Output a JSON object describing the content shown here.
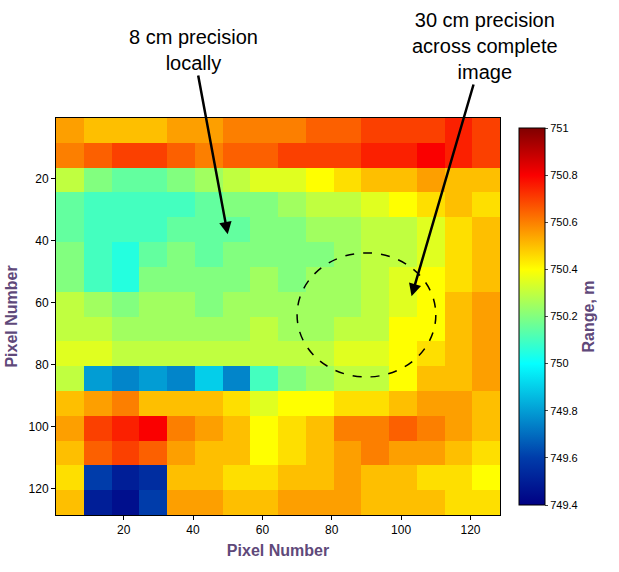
{
  "chart_data": {
    "type": "heatmap",
    "xlabel": "Pixel Number",
    "ylabel": "Pixel Number",
    "x": [
      4.5,
      12.5,
      20.5,
      28.5,
      36.5,
      44.5,
      52.5,
      60.5,
      68.5,
      76.5,
      84.5,
      92.5,
      100.5,
      108.5,
      116.5,
      124.5
    ],
    "y": [
      4.5,
      12.5,
      20.5,
      28.5,
      36.5,
      44.5,
      52.5,
      60.5,
      68.5,
      76.5,
      84.5,
      92.5,
      100.5,
      108.5,
      116.5,
      124.5
    ],
    "z": [
      [
        750.55,
        750.5,
        750.5,
        750.5,
        750.55,
        750.55,
        750.6,
        750.6,
        750.6,
        750.65,
        750.65,
        750.7,
        750.7,
        750.7,
        750.75,
        750.7
      ],
      [
        750.6,
        750.65,
        750.7,
        750.7,
        750.65,
        750.6,
        750.65,
        750.65,
        750.7,
        750.7,
        750.7,
        750.75,
        750.75,
        750.8,
        750.75,
        750.7
      ],
      [
        750.3,
        750.2,
        750.15,
        750.15,
        750.2,
        750.25,
        750.3,
        750.35,
        750.35,
        750.4,
        750.45,
        750.5,
        750.5,
        750.55,
        750.5,
        750.5
      ],
      [
        750.15,
        750.1,
        750.1,
        750.1,
        750.1,
        750.15,
        750.2,
        750.2,
        750.25,
        750.3,
        750.3,
        750.35,
        750.4,
        750.45,
        750.5,
        750.45
      ],
      [
        750.15,
        750.1,
        750.1,
        750.1,
        750.15,
        750.15,
        750.15,
        750.2,
        750.2,
        750.25,
        750.25,
        750.3,
        750.3,
        750.35,
        750.45,
        750.5
      ],
      [
        750.2,
        750.1,
        750.05,
        750.15,
        750.2,
        750.15,
        750.2,
        750.2,
        750.2,
        750.2,
        750.25,
        750.3,
        750.3,
        750.35,
        750.45,
        750.5
      ],
      [
        750.2,
        750.1,
        750.05,
        750.2,
        750.2,
        750.2,
        750.2,
        750.25,
        750.2,
        750.25,
        750.25,
        750.3,
        750.35,
        750.4,
        750.45,
        750.5
      ],
      [
        750.3,
        750.25,
        750.2,
        750.25,
        750.25,
        750.2,
        750.25,
        750.25,
        750.25,
        750.25,
        750.25,
        750.3,
        750.35,
        750.4,
        750.5,
        750.55
      ],
      [
        750.3,
        750.3,
        750.25,
        750.25,
        750.25,
        750.25,
        750.25,
        750.3,
        750.25,
        750.25,
        750.3,
        750.3,
        750.4,
        750.4,
        750.5,
        750.55
      ],
      [
        750.35,
        750.35,
        750.3,
        750.3,
        750.3,
        750.3,
        750.3,
        750.3,
        750.3,
        750.3,
        750.35,
        750.35,
        750.4,
        750.45,
        750.5,
        750.55
      ],
      [
        750.3,
        749.8,
        749.75,
        749.8,
        749.75,
        749.9,
        749.75,
        750.1,
        750.2,
        750.25,
        750.3,
        750.3,
        750.4,
        750.5,
        750.5,
        750.55
      ],
      [
        750.5,
        750.55,
        750.6,
        750.5,
        750.5,
        750.5,
        750.45,
        750.35,
        750.4,
        750.4,
        750.45,
        750.45,
        750.5,
        750.55,
        750.55,
        750.5
      ],
      [
        750.55,
        750.7,
        750.75,
        750.8,
        750.6,
        750.55,
        750.5,
        750.4,
        750.45,
        750.5,
        750.6,
        750.6,
        750.65,
        750.6,
        750.55,
        750.5
      ],
      [
        750.5,
        750.65,
        750.7,
        750.65,
        750.55,
        750.5,
        750.5,
        750.4,
        750.45,
        750.5,
        750.55,
        750.6,
        750.55,
        750.55,
        750.5,
        750.45
      ],
      [
        750.45,
        749.6,
        749.5,
        749.55,
        750.5,
        750.5,
        750.45,
        750.45,
        750.5,
        750.5,
        750.55,
        750.5,
        750.5,
        750.45,
        750.45,
        750.4
      ],
      [
        750.5,
        749.5,
        749.45,
        749.6,
        750.55,
        750.55,
        750.5,
        750.5,
        750.55,
        750.55,
        750.55,
        750.5,
        750.5,
        750.5,
        750.45,
        750.45
      ]
    ],
    "xlim": [
      0.5,
      128.5
    ],
    "xticks": [
      20,
      40,
      60,
      80,
      100,
      120
    ],
    "ylim": [
      128.5,
      0.5
    ],
    "yticks": [
      20,
      40,
      60,
      80,
      100,
      120
    ],
    "colorbar": {
      "title": "Range, m",
      "range": [
        749.4,
        751
      ],
      "ticks": [
        749.4,
        749.6,
        749.8,
        750,
        750.2,
        750.4,
        750.6,
        750.8,
        751
      ]
    },
    "annotations": [
      {
        "lines": [
          "8 cm precision",
          "locally"
        ],
        "x": 50,
        "y": 38
      },
      {
        "lines": [
          "30 cm precision",
          "across complete",
          "image"
        ],
        "x": 103,
        "y": 58
      }
    ]
  }
}
